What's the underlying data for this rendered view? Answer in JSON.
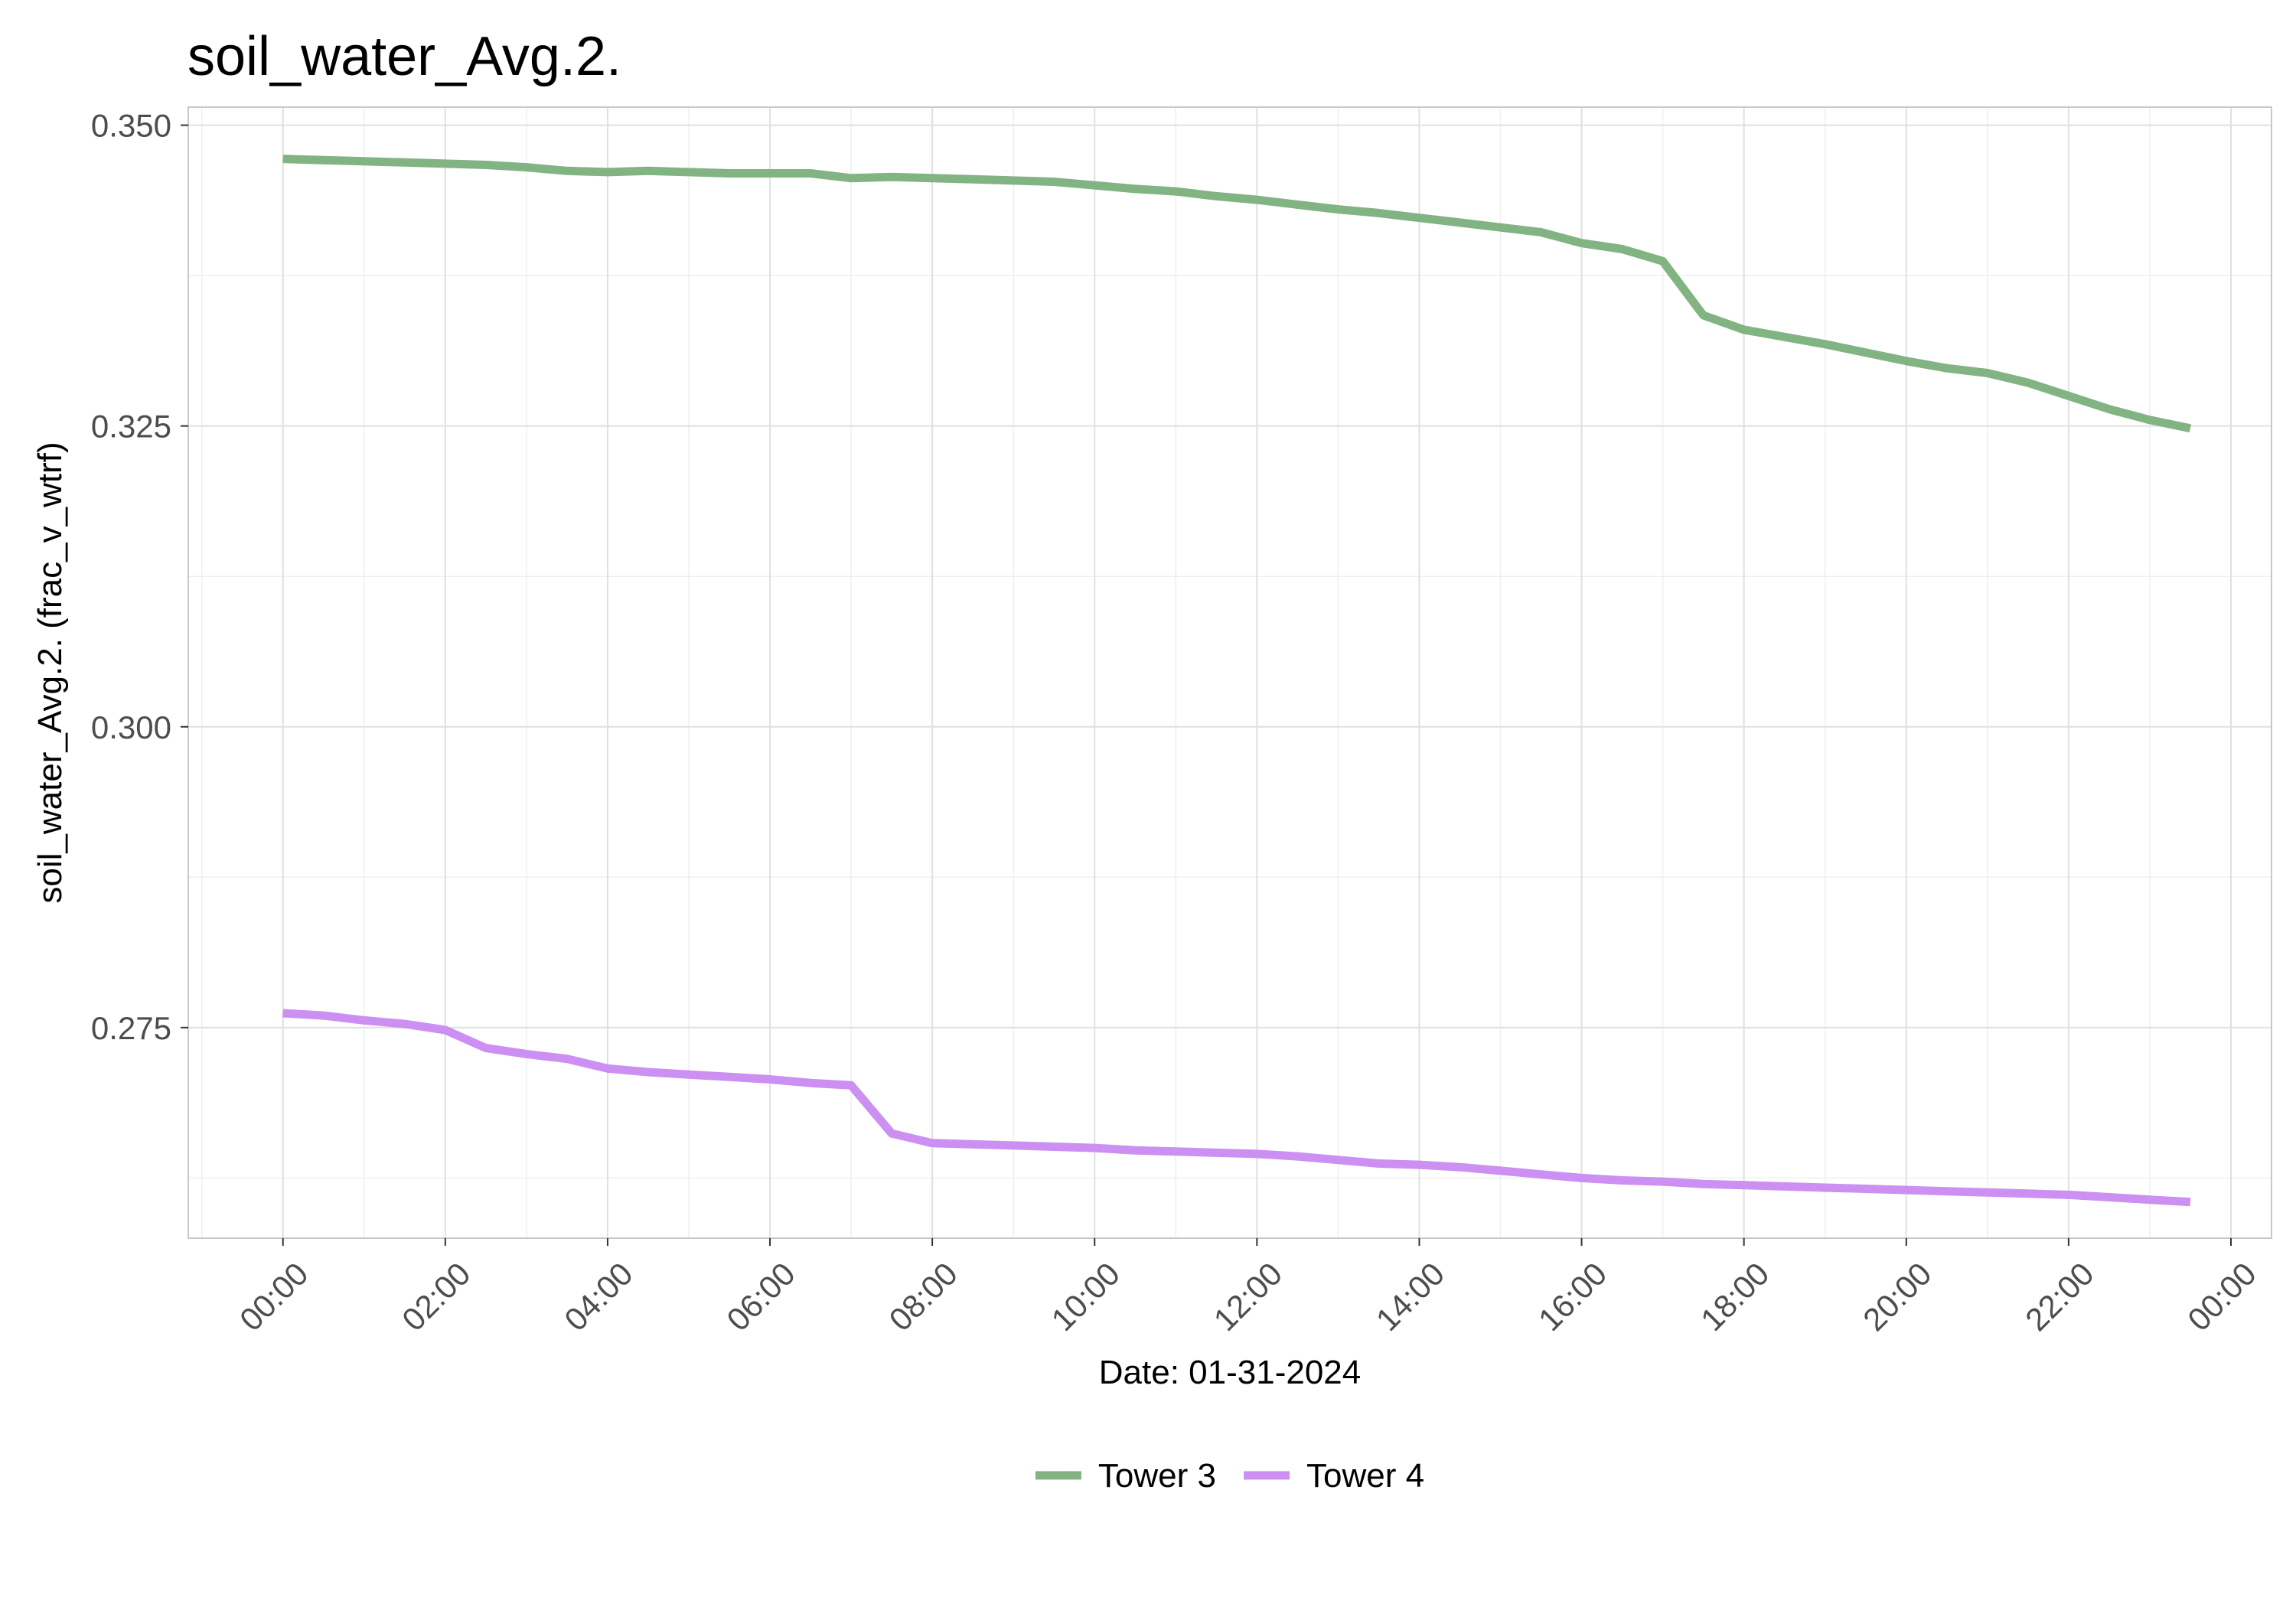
{
  "chart_data": {
    "type": "line",
    "title": "soil_water_Avg.2.",
    "xlabel": "Date: 01-31-2024",
    "ylabel": "soil_water_Avg.2. (frac_v_wtrf)",
    "x_unit": "time of day",
    "xlim": [
      "-01:10",
      "24:30"
    ],
    "ylim": [
      0.2575,
      0.3515
    ],
    "x_ticks": [
      "00:00",
      "02:00",
      "04:00",
      "06:00",
      "08:00",
      "10:00",
      "12:00",
      "14:00",
      "16:00",
      "18:00",
      "20:00",
      "22:00",
      "00:00"
    ],
    "x_tick_hours": [
      0,
      2,
      4,
      6,
      8,
      10,
      12,
      14,
      16,
      18,
      20,
      22,
      24
    ],
    "y_ticks": [
      0.35,
      0.325,
      0.3,
      0.275
    ],
    "y_tick_labels": [
      "0.350",
      "0.325",
      "0.300",
      "0.275"
    ],
    "grid": true,
    "legend_position": "bottom",
    "series": [
      {
        "name": "Tower 3",
        "color": "#82b383",
        "x": [
          "00:00",
          "00:30",
          "01:00",
          "01:30",
          "02:00",
          "02:30",
          "03:00",
          "03:30",
          "04:00",
          "04:30",
          "05:00",
          "05:30",
          "06:00",
          "06:30",
          "07:00",
          "07:30",
          "08:00",
          "08:30",
          "09:00",
          "09:30",
          "10:00",
          "10:30",
          "11:00",
          "11:30",
          "12:00",
          "12:30",
          "13:00",
          "13:30",
          "14:00",
          "14:30",
          "15:00",
          "15:30",
          "16:00",
          "16:30",
          "17:00",
          "17:30",
          "18:00",
          "18:30",
          "19:00",
          "19:30",
          "20:00",
          "20:30",
          "21:00",
          "21:30",
          "22:00",
          "22:30",
          "23:00",
          "23:30"
        ],
        "values": [
          0.3472,
          0.3471,
          0.347,
          0.3469,
          0.3468,
          0.3467,
          0.3465,
          0.3462,
          0.3461,
          0.3462,
          0.3461,
          0.346,
          0.346,
          0.346,
          0.3456,
          0.3457,
          0.3456,
          0.3455,
          0.3454,
          0.3453,
          0.345,
          0.3447,
          0.3445,
          0.3441,
          0.3438,
          0.3434,
          0.343,
          0.3427,
          0.3423,
          0.3419,
          0.3415,
          0.3411,
          0.3402,
          0.3397,
          0.3387,
          0.3342,
          0.333,
          0.3324,
          0.3318,
          0.3311,
          0.3304,
          0.3298,
          0.3294,
          0.3286,
          0.3275,
          0.3264,
          0.3255,
          0.3248
        ]
      },
      {
        "name": "Tower 4",
        "color": "#cc8ff2",
        "x": [
          "00:00",
          "00:30",
          "01:00",
          "01:30",
          "02:00",
          "02:30",
          "03:00",
          "03:30",
          "04:00",
          "04:30",
          "05:00",
          "05:30",
          "06:00",
          "06:30",
          "07:00",
          "07:30",
          "08:00",
          "08:30",
          "09:00",
          "09:30",
          "10:00",
          "10:30",
          "11:00",
          "11:30",
          "12:00",
          "12:30",
          "13:00",
          "13:30",
          "14:00",
          "14:30",
          "15:00",
          "15:30",
          "16:00",
          "16:30",
          "17:00",
          "17:30",
          "18:00",
          "18:30",
          "19:00",
          "19:30",
          "20:00",
          "20:30",
          "21:00",
          "21:30",
          "22:00",
          "22:30",
          "23:00",
          "23:30"
        ],
        "values": [
          0.2762,
          0.276,
          0.2756,
          0.2753,
          0.2748,
          0.2733,
          0.2728,
          0.2724,
          0.2716,
          0.2713,
          0.2711,
          0.2709,
          0.2707,
          0.2704,
          0.2702,
          0.2662,
          0.2654,
          0.2653,
          0.2652,
          0.2651,
          0.265,
          0.2648,
          0.2647,
          0.2646,
          0.2645,
          0.2643,
          0.264,
          0.2637,
          0.2636,
          0.2634,
          0.2631,
          0.2628,
          0.2625,
          0.2623,
          0.2622,
          0.262,
          0.2619,
          0.2618,
          0.2617,
          0.2616,
          0.2615,
          0.2614,
          0.2613,
          0.2612,
          0.2611,
          0.2609,
          0.2607,
          0.2605
        ]
      }
    ]
  }
}
